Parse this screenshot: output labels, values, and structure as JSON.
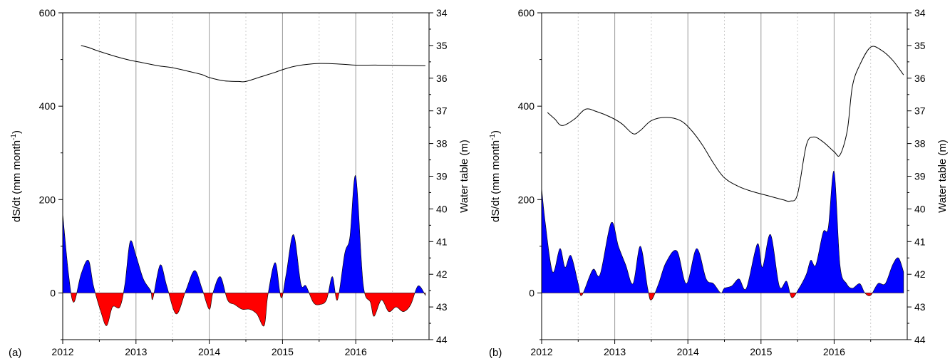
{
  "panels": [
    {
      "tag": "(a)"
    },
    {
      "tag": "(b)"
    }
  ],
  "colors": {
    "positive": "#0000ff",
    "negative": "#ff0000",
    "line": "#000000",
    "grid_major": "#999999",
    "grid_minor": "#cccccc"
  },
  "chart_data": [
    {
      "type": "area",
      "xlabel": "",
      "ylabel": "dS/dt (mm month",
      "ylabel_sup": "-1",
      "ylabel_close": ")",
      "y2label": "Water table (m)",
      "xlim": [
        2012,
        2017
      ],
      "ylim": [
        -100,
        600
      ],
      "y2lim": [
        34,
        44
      ],
      "y2_inverted": true,
      "xticks": [
        2012,
        2013,
        2014,
        2015,
        2016
      ],
      "yticks": [
        0,
        200,
        400,
        600
      ],
      "y2ticks": [
        34,
        35,
        36,
        37,
        38,
        39,
        40,
        41,
        42,
        43,
        44
      ],
      "grid": true,
      "series": [
        {
          "kind": "area",
          "x": [
            2012.0,
            2012.08,
            2012.15,
            2012.25,
            2012.35,
            2012.42,
            2012.52,
            2012.6,
            2012.68,
            2012.78,
            2012.85,
            2012.92,
            2013.0,
            2013.1,
            2013.2,
            2013.23,
            2013.33,
            2013.42,
            2013.55,
            2013.68,
            2013.8,
            2013.9,
            2014.0,
            2014.05,
            2014.15,
            2014.25,
            2014.35,
            2014.45,
            2014.55,
            2014.65,
            2014.75,
            2014.8,
            2014.9,
            2014.98,
            2015.05,
            2015.15,
            2015.25,
            2015.32,
            2015.42,
            2015.5,
            2015.6,
            2015.68,
            2015.75,
            2015.85,
            2015.92,
            2016.0,
            2016.1,
            2016.2,
            2016.25,
            2016.35,
            2016.45,
            2016.55,
            2016.65,
            2016.75,
            2016.85,
            2016.95
          ],
          "values": [
            170,
            40,
            -20,
            40,
            70,
            15,
            -40,
            -70,
            -30,
            -30,
            20,
            110,
            80,
            30,
            5,
            -12,
            60,
            15,
            -45,
            5,
            48,
            10,
            -35,
            0,
            35,
            -15,
            -25,
            -35,
            -35,
            -45,
            -70,
            -5,
            65,
            -10,
            40,
            125,
            20,
            15,
            -20,
            -25,
            -15,
            35,
            -15,
            85,
            120,
            250,
            20,
            -20,
            -50,
            -15,
            -40,
            -30,
            -40,
            -25,
            15,
            -5
          ]
        },
        {
          "kind": "line",
          "name": "Water table",
          "x": [
            2012.25,
            2012.35,
            2012.5,
            2012.7,
            2012.9,
            2013.1,
            2013.3,
            2013.5,
            2013.7,
            2013.9,
            2014.0,
            2014.2,
            2014.4,
            2014.5,
            2014.7,
            2014.9,
            2015.0,
            2015.2,
            2015.5,
            2015.8,
            2016.0,
            2016.3,
            2016.6,
            2016.95
          ],
          "values": [
            35.0,
            35.06,
            35.18,
            35.32,
            35.44,
            35.53,
            35.62,
            35.68,
            35.78,
            35.89,
            35.98,
            36.08,
            36.1,
            36.1,
            35.96,
            35.82,
            35.74,
            35.62,
            35.55,
            35.57,
            35.6,
            35.6,
            35.61,
            35.62
          ]
        }
      ]
    },
    {
      "type": "area",
      "xlabel": "",
      "ylabel": "dS/dt (mm month",
      "ylabel_sup": "-1",
      "ylabel_close": ")",
      "y2label": "Water table (m)",
      "xlim": [
        2012,
        2017
      ],
      "ylim": [
        -100,
        600
      ],
      "y2lim": [
        34,
        44
      ],
      "y2_inverted": true,
      "xticks": [
        2012,
        2013,
        2014,
        2015,
        2016
      ],
      "yticks": [
        0,
        200,
        400,
        600
      ],
      "y2ticks": [
        34,
        35,
        36,
        37,
        38,
        39,
        40,
        41,
        42,
        43,
        44
      ],
      "grid": true,
      "series": [
        {
          "kind": "area",
          "x": [
            2012.0,
            2012.05,
            2012.15,
            2012.25,
            2012.32,
            2012.4,
            2012.5,
            2012.55,
            2012.7,
            2012.8,
            2012.95,
            2013.05,
            2013.15,
            2013.25,
            2013.35,
            2013.45,
            2013.5,
            2013.6,
            2013.7,
            2013.85,
            2013.98,
            2014.12,
            2014.25,
            2014.35,
            2014.45,
            2014.5,
            2014.6,
            2014.7,
            2014.8,
            2014.95,
            2015.02,
            2015.13,
            2015.25,
            2015.35,
            2015.42,
            2015.52,
            2015.62,
            2015.68,
            2015.75,
            2015.85,
            2015.92,
            2016.0,
            2016.08,
            2016.17,
            2016.25,
            2016.35,
            2016.42,
            2016.5,
            2016.6,
            2016.7,
            2016.8,
            2016.88,
            2016.95
          ],
          "values": [
            225,
            150,
            45,
            95,
            55,
            80,
            20,
            -5,
            50,
            40,
            150,
            100,
            60,
            20,
            100,
            10,
            -15,
            20,
            65,
            90,
            20,
            95,
            30,
            20,
            0,
            10,
            15,
            30,
            10,
            105,
            55,
            125,
            15,
            25,
            -10,
            10,
            40,
            70,
            60,
            130,
            140,
            260,
            60,
            20,
            10,
            20,
            0,
            -5,
            20,
            20,
            60,
            75,
            45
          ]
        },
        {
          "kind": "line",
          "name": "Water table",
          "x": [
            2012.08,
            2012.18,
            2012.28,
            2012.45,
            2012.6,
            2012.75,
            2012.95,
            2013.1,
            2013.25,
            2013.35,
            2013.5,
            2013.7,
            2013.9,
            2014.05,
            2014.2,
            2014.35,
            2014.5,
            2014.7,
            2014.9,
            2015.1,
            2015.3,
            2015.4,
            2015.5,
            2015.62,
            2015.72,
            2015.85,
            2016.0,
            2016.08,
            2016.18,
            2016.25,
            2016.35,
            2016.5,
            2016.65,
            2016.8,
            2016.95
          ],
          "values": [
            37.05,
            37.25,
            37.45,
            37.25,
            36.95,
            37.02,
            37.2,
            37.4,
            37.7,
            37.6,
            37.3,
            37.2,
            37.3,
            37.6,
            38.05,
            38.6,
            39.05,
            39.32,
            39.48,
            39.6,
            39.72,
            39.76,
            39.55,
            38.05,
            37.8,
            37.95,
            38.25,
            38.35,
            37.6,
            36.25,
            35.6,
            35.05,
            35.15,
            35.45,
            35.9
          ]
        }
      ]
    }
  ]
}
